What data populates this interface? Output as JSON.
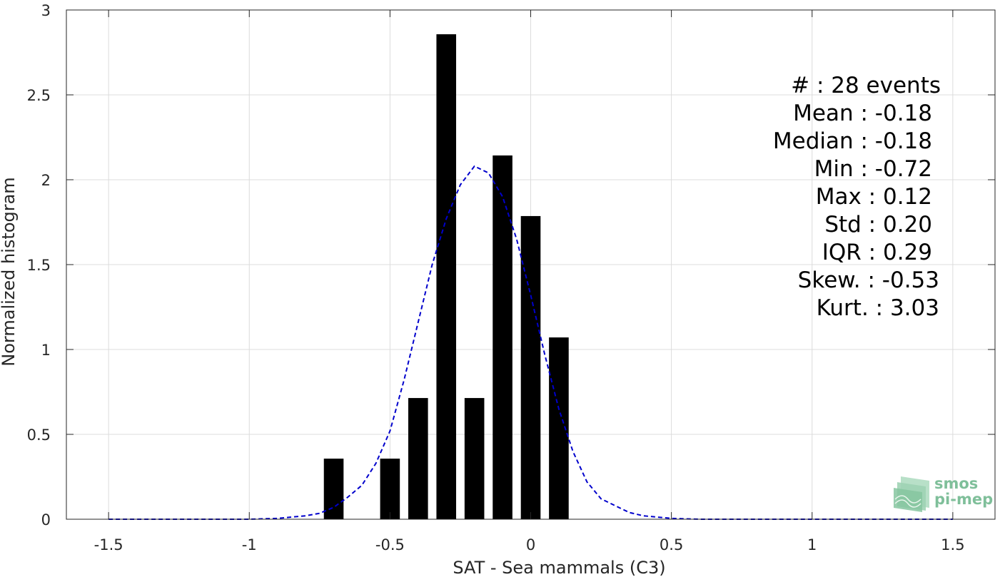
{
  "chart_data": {
    "type": "bar",
    "xlabel": "SAT - Sea mammals (C3)",
    "ylabel": "Normalized histogram",
    "xlim": [
      -1.65,
      1.65
    ],
    "ylim": [
      0,
      3
    ],
    "x_ticks": [
      "-1.5",
      "-1",
      "-0.5",
      "0",
      "0.5",
      "1",
      "1.5"
    ],
    "y_ticks": [
      "0",
      "0.5",
      "1",
      "1.5",
      "2",
      "2.5",
      "3"
    ],
    "grid": true,
    "bars": {
      "width": 0.07,
      "color": "#000000",
      "centers": [
        -0.7,
        -0.5,
        -0.4,
        -0.3,
        -0.2,
        -0.1,
        0.0,
        0.1
      ],
      "values": [
        0.357,
        0.357,
        0.714,
        2.857,
        0.714,
        2.143,
        1.786,
        1.071
      ]
    },
    "fit_curve": {
      "style": "dashed",
      "color": "#0000cc",
      "x": [
        -1.5,
        -1.3,
        -1.1,
        -1.0,
        -0.9,
        -0.8,
        -0.75,
        -0.7,
        -0.65,
        -0.6,
        -0.55,
        -0.5,
        -0.45,
        -0.4,
        -0.35,
        -0.3,
        -0.25,
        -0.2,
        -0.15,
        -0.1,
        -0.05,
        0.0,
        0.05,
        0.1,
        0.15,
        0.2,
        0.25,
        0.3,
        0.35,
        0.4,
        0.5,
        0.6,
        0.8,
        1.0,
        1.5
      ],
      "y": [
        0,
        0,
        0,
        0,
        0.005,
        0.02,
        0.035,
        0.07,
        0.13,
        0.2,
        0.33,
        0.52,
        0.82,
        1.16,
        1.5,
        1.77,
        1.97,
        2.08,
        2.04,
        1.9,
        1.65,
        1.32,
        0.97,
        0.65,
        0.4,
        0.22,
        0.12,
        0.08,
        0.04,
        0.02,
        0.005,
        0,
        0,
        0,
        0
      ]
    },
    "stats": [
      "#  : 28 events",
      "Mean : -0.18",
      "Median : -0.18",
      "Min : -0.72",
      "Max : 0.12",
      "Std : 0.20",
      "IQR : 0.29",
      "Skew. : -0.53",
      "Kurt. : 3.03"
    ]
  },
  "logo": {
    "line1": "smos",
    "line2": "pi-mep"
  }
}
